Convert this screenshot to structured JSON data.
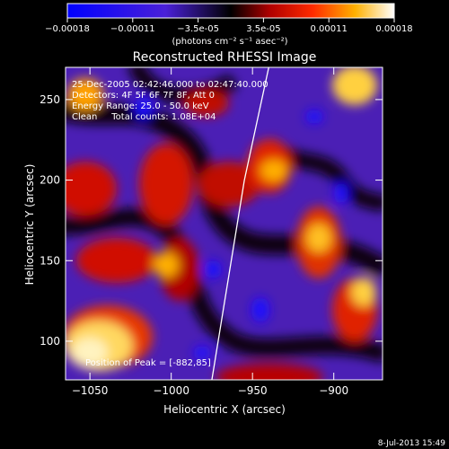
{
  "colorbar": {
    "ticks": [
      "-0.00018",
      "-0.00011",
      "-3.5e-05",
      "3.5e-05",
      "0.00011",
      "0.00018"
    ],
    "units": "(photons cm⁻² s⁻¹ asec⁻²)"
  },
  "chart_data": {
    "type": "heatmap",
    "title": "Reconstructed RHESSI Image",
    "xlabel": "Heliocentric X (arcsec)",
    "ylabel": "Heliocentric Y (arcsec)",
    "xlim": [
      -1065,
      -870
    ],
    "ylim": [
      76,
      270
    ],
    "x_ticks": [
      -1050,
      -1000,
      -950,
      -900
    ],
    "y_ticks": [
      100,
      150,
      200,
      250
    ],
    "colorbar_range": [
      -0.00018,
      0.00018
    ],
    "peak": [
      -882,
      85
    ],
    "limb_curve": {
      "x": [
        -975,
        -955,
        -940
      ],
      "y": [
        76,
        200,
        270
      ]
    },
    "annotations": [
      "25-Dec-2005 02:42:46.000 to 02:47:40.000",
      "Detectors: 4F 5F 6F 7F 8F, Att 0",
      "Energy Range: 25.0 - 50.0 keV",
      "Clean     Total counts: 1.08E+04"
    ],
    "peak_label": "Position of Peak = [-882,85]"
  },
  "footer": {
    "date": "8-Jul-2013 15:49"
  }
}
